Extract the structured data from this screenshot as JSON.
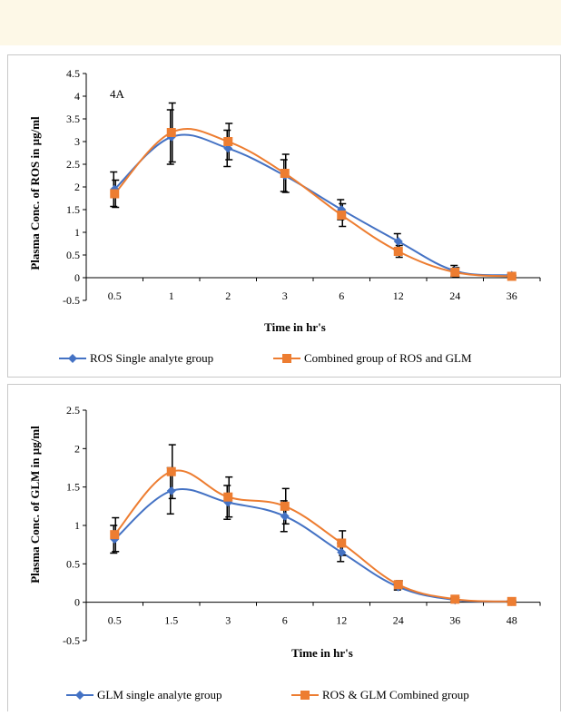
{
  "colors": {
    "series1": "#4472c4",
    "series2": "#ed7d31",
    "errorbar": "#000000",
    "axis": "#000000"
  },
  "chart_data": [
    {
      "type": "line",
      "label": "4A",
      "categories": [
        "0.5",
        "1",
        "2",
        "3",
        "6",
        "12",
        "24",
        "36"
      ],
      "xlabel": "Time in hr's",
      "ylabel": "Plasma Conc. of ROS in µg/ml",
      "ylim": [
        -0.5,
        4.5
      ],
      "yticks": [
        "-0.5",
        "0",
        "0.5",
        "1",
        "1.5",
        "2",
        "2.5",
        "3",
        "3.5",
        "4",
        "4.5"
      ],
      "grid": false,
      "legend": "bottom",
      "series": [
        {
          "name": "ROS Single analyte group",
          "marker": "diamond",
          "values": [
            1.95,
            3.1,
            2.85,
            2.25,
            1.5,
            0.8,
            0.15,
            0.05
          ],
          "errors": [
            0.38,
            0.6,
            0.4,
            0.35,
            0.22,
            0.17,
            0.12,
            0.03
          ]
        },
        {
          "name": "Combined group of ROS and GLM",
          "marker": "square",
          "values": [
            1.85,
            3.2,
            3.0,
            2.3,
            1.38,
            0.58,
            0.12,
            0.03
          ],
          "errors": [
            0.3,
            0.65,
            0.4,
            0.42,
            0.25,
            0.13,
            0.1,
            0.02
          ]
        }
      ]
    },
    {
      "type": "line",
      "label": "",
      "categories": [
        "0.5",
        "1.5",
        "3",
        "6",
        "12",
        "24",
        "36",
        "48"
      ],
      "xlabel": "Time in hr's",
      "ylabel": "Plasma Conc. of GLM in µg/ml",
      "ylim": [
        -0.5,
        2.5
      ],
      "yticks": [
        "-0.5",
        "0",
        "0.5",
        "1",
        "1.5",
        "2",
        "2.5"
      ],
      "grid": false,
      "legend": "bottom",
      "series": [
        {
          "name": "GLM single analyte group",
          "marker": "diamond",
          "values": [
            0.82,
            1.45,
            1.3,
            1.12,
            0.65,
            0.2,
            0.03,
            0.01
          ],
          "errors": [
            0.18,
            0.3,
            0.22,
            0.2,
            0.12,
            0.04,
            0.02,
            0.01
          ]
        },
        {
          "name": "ROS & GLM Combined group",
          "marker": "square",
          "values": [
            0.88,
            1.7,
            1.37,
            1.25,
            0.77,
            0.23,
            0.04,
            0.01
          ],
          "errors": [
            0.22,
            0.35,
            0.26,
            0.23,
            0.16,
            0.05,
            0.02,
            0.01
          ]
        }
      ]
    }
  ]
}
